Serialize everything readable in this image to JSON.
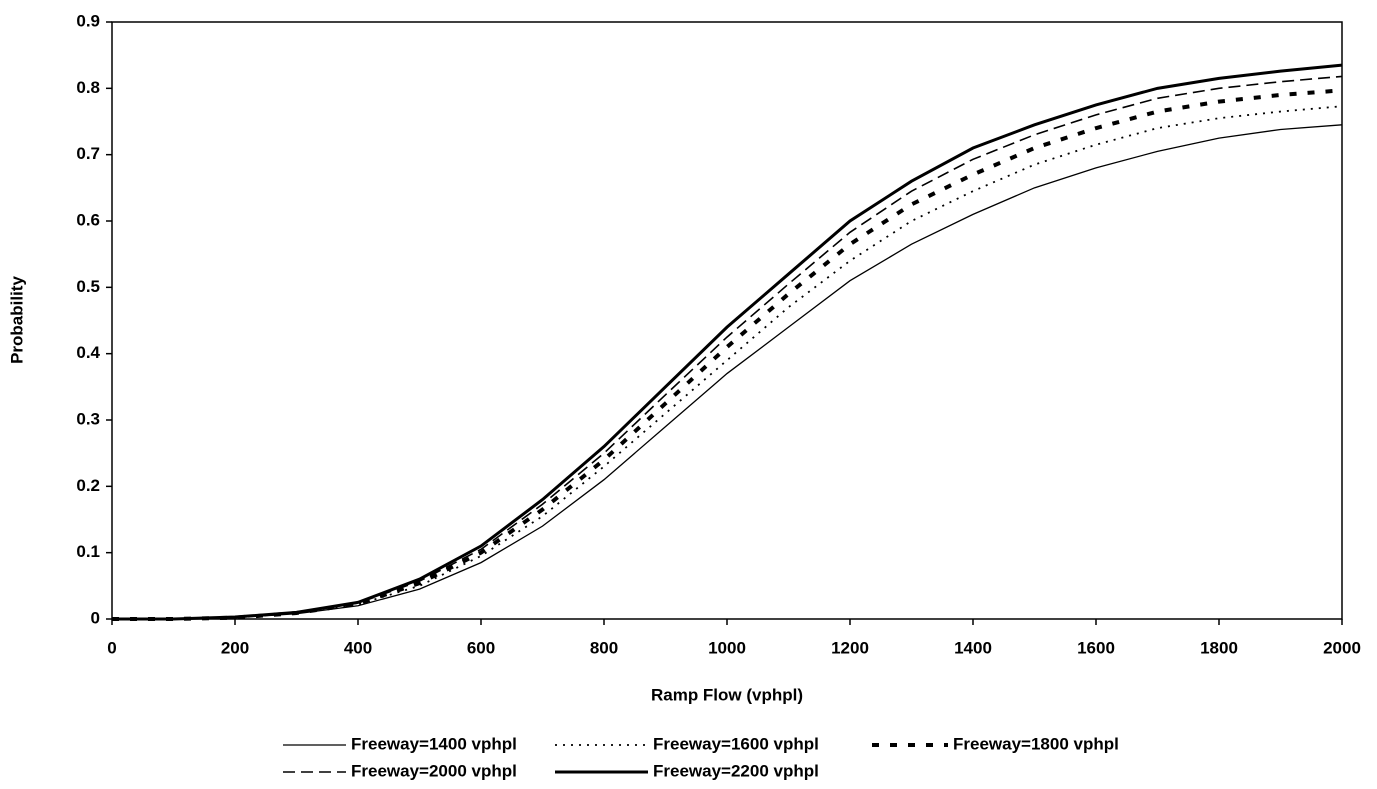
{
  "chart_data": {
    "type": "line",
    "x_label": "Ramp Flow (vphpl)",
    "y_label": "Probability",
    "x": [
      0,
      100,
      200,
      300,
      400,
      500,
      600,
      700,
      800,
      900,
      1000,
      1100,
      1200,
      1300,
      1400,
      1500,
      1600,
      1700,
      1800,
      1900,
      2000
    ],
    "series": [
      {
        "name": "Freeway=1400 vphpl",
        "color": "#000000",
        "width": 1.3,
        "dash": "none",
        "values": [
          0,
          0,
          0.002,
          0.008,
          0.02,
          0.045,
          0.085,
          0.14,
          0.21,
          0.29,
          0.37,
          0.44,
          0.51,
          0.565,
          0.61,
          0.65,
          0.68,
          0.705,
          0.725,
          0.738,
          0.745
        ]
      },
      {
        "name": "Freeway=1600 vphpl",
        "color": "#000000",
        "width": 1.8,
        "dash": "2 6",
        "values": [
          0,
          0,
          0.002,
          0.009,
          0.022,
          0.05,
          0.095,
          0.155,
          0.23,
          0.31,
          0.39,
          0.47,
          0.54,
          0.6,
          0.645,
          0.685,
          0.715,
          0.74,
          0.755,
          0.765,
          0.773
        ]
      },
      {
        "name": "Freeway=1800 vphpl",
        "color": "#000000",
        "width": 4,
        "dash": "7 11",
        "values": [
          0,
          0,
          0.002,
          0.009,
          0.023,
          0.054,
          0.1,
          0.165,
          0.24,
          0.325,
          0.41,
          0.49,
          0.565,
          0.625,
          0.67,
          0.71,
          0.74,
          0.765,
          0.78,
          0.79,
          0.797
        ]
      },
      {
        "name": "Freeway=2000 vphpl",
        "color": "#000000",
        "width": 1.6,
        "dash": "12 6",
        "values": [
          0,
          0,
          0.003,
          0.01,
          0.024,
          0.057,
          0.105,
          0.173,
          0.25,
          0.338,
          0.425,
          0.505,
          0.583,
          0.645,
          0.693,
          0.73,
          0.76,
          0.785,
          0.8,
          0.81,
          0.818
        ]
      },
      {
        "name": "Freeway=2200 vphpl",
        "color": "#000000",
        "width": 3,
        "dash": "none",
        "values": [
          0,
          0,
          0.003,
          0.01,
          0.025,
          0.06,
          0.11,
          0.18,
          0.26,
          0.35,
          0.44,
          0.52,
          0.6,
          0.66,
          0.71,
          0.745,
          0.775,
          0.8,
          0.815,
          0.826,
          0.835
        ]
      }
    ],
    "xlim": [
      0,
      2000
    ],
    "xticks": [
      0,
      200,
      400,
      600,
      800,
      1000,
      1200,
      1400,
      1600,
      1800,
      2000
    ],
    "ylim": [
      0,
      0.9
    ],
    "yticks": [
      0,
      0.1,
      0.2,
      0.3,
      0.4,
      0.5,
      0.6,
      0.7,
      0.8,
      0.9
    ],
    "grid": false
  }
}
